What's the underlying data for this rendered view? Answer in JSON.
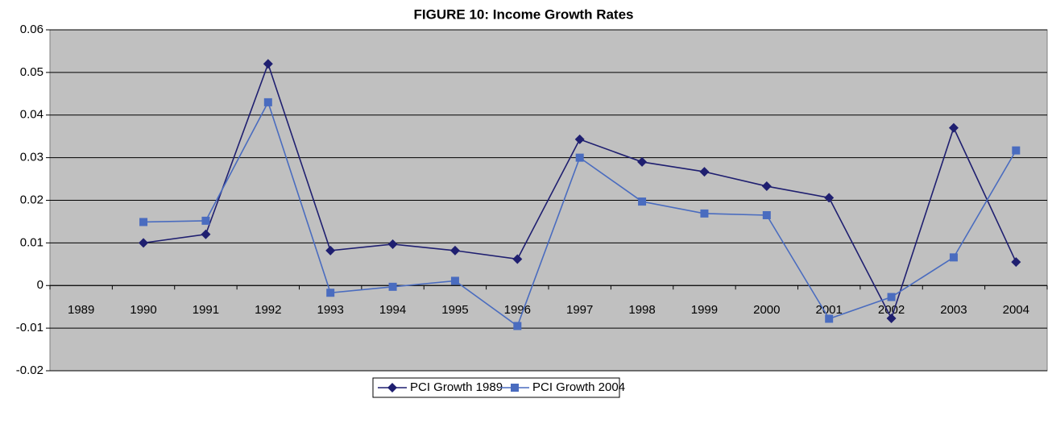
{
  "chart_data": {
    "type": "line",
    "title": "FIGURE 10: Income Growth Rates",
    "categories": [
      "1989",
      "1990",
      "1991",
      "1992",
      "1993",
      "1994",
      "1995",
      "1996",
      "1997",
      "1998",
      "1999",
      "2000",
      "2001",
      "2002",
      "2003",
      "2004"
    ],
    "series": [
      {
        "name": "PCI Growth 1989",
        "color": "#1f1f70",
        "marker": "diamond",
        "values": [
          null,
          0.01,
          0.012,
          0.052,
          0.0082,
          0.0097,
          0.0082,
          0.0062,
          0.0343,
          0.029,
          0.0267,
          0.0233,
          0.0206,
          -0.0077,
          0.037,
          0.0055
        ]
      },
      {
        "name": "PCI Growth 2004",
        "color": "#4a6cbf",
        "marker": "square",
        "values": [
          null,
          0.0149,
          0.0152,
          0.043,
          -0.0017,
          -0.0003,
          0.0011,
          -0.0095,
          0.03,
          0.0197,
          0.0169,
          0.0165,
          -0.0078,
          -0.0027,
          0.0066,
          0.0317
        ]
      }
    ],
    "ylim": [
      -0.02,
      0.06
    ],
    "yticks": [
      -0.02,
      -0.01,
      0,
      0.01,
      0.02,
      0.03,
      0.04,
      0.05,
      0.06
    ],
    "grid": true,
    "plot_background": "#c0c0c0",
    "legend": "bottom"
  }
}
